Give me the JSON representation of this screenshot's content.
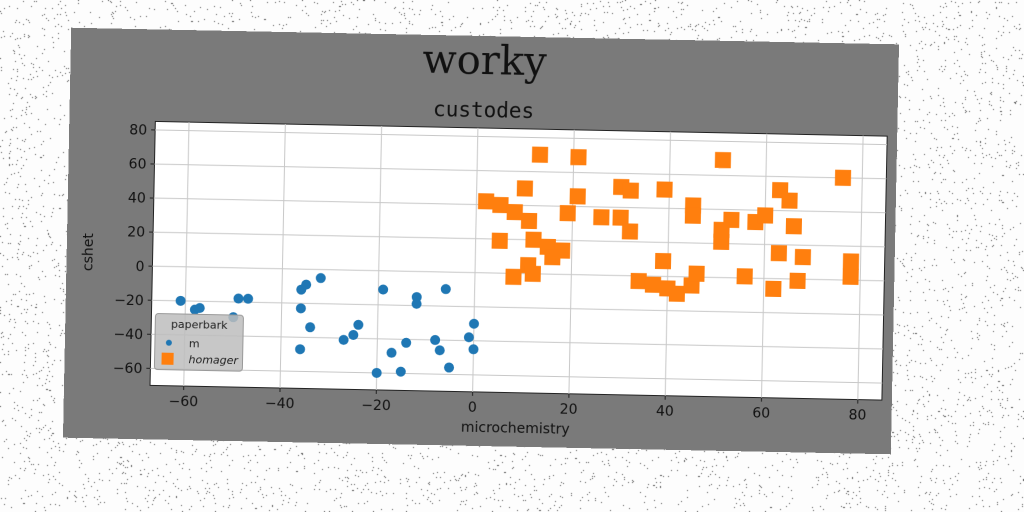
{
  "title": "worky",
  "chart_data": {
    "type": "scatter",
    "title": "custodes",
    "xlabel": "microchemistry",
    "ylabel": "cshet",
    "xlim": [
      -67,
      85
    ],
    "ylim": [
      -70,
      85
    ],
    "xticks": [
      -60,
      -40,
      -20,
      0,
      20,
      40,
      60,
      80
    ],
    "yticks": [
      -60,
      -40,
      -20,
      0,
      20,
      40,
      60,
      80
    ],
    "grid": true,
    "legend": {
      "title": "paperbark",
      "placement": "lower-left"
    },
    "series": [
      {
        "name": "m",
        "color": "#1f77b4",
        "marker": "circle",
        "points": [
          [
            -61,
            -20
          ],
          [
            -58,
            -25
          ],
          [
            -57,
            -24
          ],
          [
            -49,
            -18
          ],
          [
            -47,
            -18
          ],
          [
            -50,
            -29
          ],
          [
            -36,
            -12
          ],
          [
            -35,
            -9
          ],
          [
            -32,
            -5
          ],
          [
            -36,
            -23
          ],
          [
            -34,
            -34
          ],
          [
            -27,
            -41
          ],
          [
            -25,
            -38
          ],
          [
            -24,
            -32
          ],
          [
            -36,
            -47
          ],
          [
            -19,
            -11
          ],
          [
            -12,
            -15
          ],
          [
            -12,
            -19
          ],
          [
            -6,
            -10
          ],
          [
            -20,
            -60
          ],
          [
            -17,
            -48
          ],
          [
            -15,
            -59
          ],
          [
            -14,
            -42
          ],
          [
            -8,
            -40
          ],
          [
            -7,
            -46
          ],
          [
            -5,
            -56
          ],
          [
            -1,
            -38
          ],
          [
            0,
            -45
          ],
          [
            0,
            -30
          ]
        ]
      },
      {
        "name": "homager",
        "color": "#ff7f0e",
        "marker": "square",
        "points": [
          [
            13,
            70
          ],
          [
            21,
            69
          ],
          [
            51,
            69
          ],
          [
            76,
            60
          ],
          [
            10,
            50
          ],
          [
            21,
            46
          ],
          [
            30,
            52
          ],
          [
            32,
            50
          ],
          [
            39,
            51
          ],
          [
            45,
            42
          ],
          [
            45,
            36
          ],
          [
            63,
            52
          ],
          [
            65,
            46
          ],
          [
            2,
            42
          ],
          [
            5,
            40
          ],
          [
            8,
            36
          ],
          [
            11,
            31
          ],
          [
            19,
            36
          ],
          [
            26,
            34
          ],
          [
            30,
            34
          ],
          [
            32,
            26
          ],
          [
            51,
            28
          ],
          [
            53,
            34
          ],
          [
            58,
            33
          ],
          [
            60,
            37
          ],
          [
            66,
            31
          ],
          [
            5,
            19
          ],
          [
            12,
            20
          ],
          [
            15,
            16
          ],
          [
            18,
            14
          ],
          [
            16,
            10
          ],
          [
            11,
            5
          ],
          [
            12,
            0
          ],
          [
            39,
            9
          ],
          [
            51,
            21
          ],
          [
            63,
            15
          ],
          [
            68,
            13
          ],
          [
            78,
            11
          ],
          [
            78,
            2
          ],
          [
            8,
            -2
          ],
          [
            34,
            -3
          ],
          [
            37,
            -5
          ],
          [
            40,
            -7
          ],
          [
            42,
            -10
          ],
          [
            45,
            -5
          ],
          [
            46,
            2
          ],
          [
            56,
            1
          ],
          [
            62,
            -6
          ],
          [
            67,
            -1
          ]
        ]
      }
    ]
  }
}
